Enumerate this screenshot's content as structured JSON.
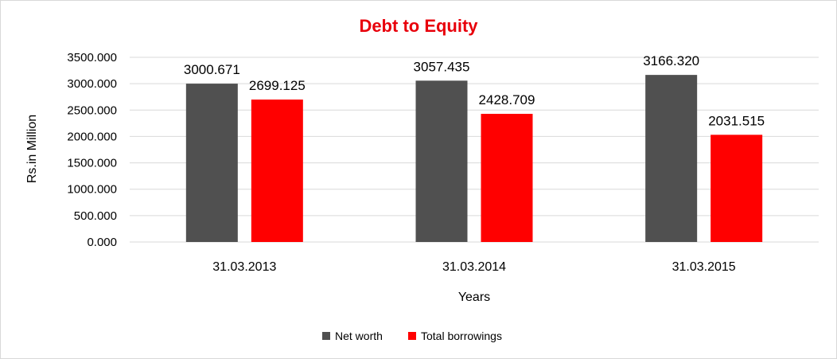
{
  "chart_data": {
    "type": "bar",
    "title": "Debt to Equity",
    "xlabel": "Years",
    "ylabel": "Rs.in Million",
    "categories": [
      "31.03.2013",
      "31.03.2014",
      "31.03.2015"
    ],
    "series": [
      {
        "name": "Net worth",
        "values": [
          3000.671,
          3057.435,
          3166.32
        ],
        "labels": [
          "3000.671",
          "3057.435",
          "3166.320"
        ],
        "color": "#505050"
      },
      {
        "name": "Total borrowings",
        "values": [
          2699.125,
          2428.709,
          2031.515
        ],
        "labels": [
          "2699.125",
          "2428.709",
          "2031.515"
        ],
        "color": "#ff0000"
      }
    ],
    "ylim": [
      0,
      3500
    ],
    "yticks": [
      "0.000",
      "500.000",
      "1000.000",
      "1500.000",
      "2000.000",
      "2500.000",
      "3000.000",
      "3500.000"
    ],
    "ytick_values": [
      0,
      500,
      1000,
      1500,
      2000,
      2500,
      3000,
      3500
    ],
    "grid": true,
    "legend_position": "bottom",
    "title_color": "#e8000b"
  }
}
